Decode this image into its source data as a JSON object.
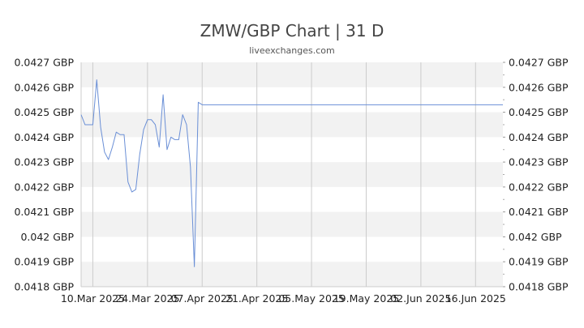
{
  "header": {
    "title": "ZMW/GBP Chart | 31 D",
    "subtitle": "liveexchanges.com"
  },
  "chart_data": {
    "type": "line",
    "title": "ZMW/GBP Chart | 31 D",
    "xlabel": "",
    "ylabel": "",
    "ylim": [
      0.0418,
      0.0427
    ],
    "yticks": [
      0.0418,
      0.0419,
      0.042,
      0.0421,
      0.0422,
      0.0423,
      0.0424,
      0.0425,
      0.0426,
      0.0427
    ],
    "ytick_labels": [
      "0.0418 GBP",
      "0.0419 GBP",
      "0.042 GBP",
      "0.0421 GBP",
      "0.0422 GBP",
      "0.0423 GBP",
      "0.0424 GBP",
      "0.0425 GBP",
      "0.0426 GBP",
      "0.0427 GBP"
    ],
    "right_ytick_labels": [
      "0.0418 GBP",
      "0.0419 GBP",
      "0.042  GBP",
      "0.0421 GBP",
      "0.0422 GBP",
      "0.0423 GBP",
      "0.0424 GBP",
      "0.0425 GBP",
      "0.0426 GBP",
      "0.0427 GBP"
    ],
    "xlim": [
      "2025-03-07",
      "2025-06-23"
    ],
    "xticks": [
      "2025-03-10",
      "2025-03-24",
      "2025-04-07",
      "2025-04-21",
      "2025-05-05",
      "2025-05-19",
      "2025-06-02",
      "2025-06-16"
    ],
    "xtick_labels": [
      "10.Mar 2025",
      "24.Mar 2025",
      "07.Apr 2025",
      "21.Apr 2025",
      "05.May 2025",
      "19.May 2025",
      "02.Jun 2025",
      "16.Jun 2025"
    ],
    "grid": true,
    "series": [
      {
        "color": "#6a8fd6",
        "points": [
          [
            "2025-03-07",
            0.04249
          ],
          [
            "2025-03-08",
            0.04245
          ],
          [
            "2025-03-09",
            0.04245
          ],
          [
            "2025-03-10",
            0.04245
          ],
          [
            "2025-03-11",
            0.04263
          ],
          [
            "2025-03-12",
            0.04244
          ],
          [
            "2025-03-13",
            0.04234
          ],
          [
            "2025-03-14",
            0.04231
          ],
          [
            "2025-03-15",
            0.04236
          ],
          [
            "2025-03-16",
            0.04242
          ],
          [
            "2025-03-17",
            0.04241
          ],
          [
            "2025-03-18",
            0.04241
          ],
          [
            "2025-03-19",
            0.04222
          ],
          [
            "2025-03-20",
            0.04218
          ],
          [
            "2025-03-21",
            0.04219
          ],
          [
            "2025-03-22",
            0.04233
          ],
          [
            "2025-03-23",
            0.04243
          ],
          [
            "2025-03-24",
            0.04247
          ],
          [
            "2025-03-25",
            0.04247
          ],
          [
            "2025-03-26",
            0.04245
          ],
          [
            "2025-03-27",
            0.04236
          ],
          [
            "2025-03-28",
            0.04257
          ],
          [
            "2025-03-29",
            0.04235
          ],
          [
            "2025-03-30",
            0.0424
          ],
          [
            "2025-03-31",
            0.04239
          ],
          [
            "2025-04-01",
            0.04239
          ],
          [
            "2025-04-02",
            0.04249
          ],
          [
            "2025-04-03",
            0.04245
          ],
          [
            "2025-04-04",
            0.04228
          ],
          [
            "2025-04-05",
            0.04188
          ],
          [
            "2025-04-06",
            0.04254
          ],
          [
            "2025-04-07",
            0.04253
          ],
          [
            "2025-06-23",
            0.04253
          ]
        ]
      }
    ]
  }
}
